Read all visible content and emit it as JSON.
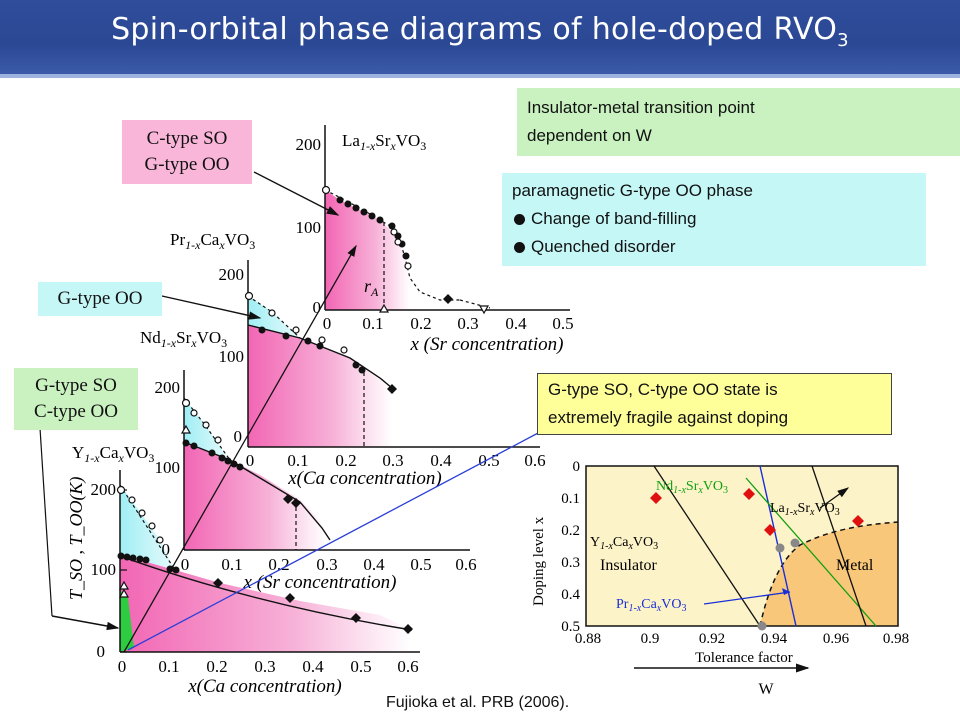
{
  "slide": {
    "title": "Spin-orbital phase diagrams of hole-doped RVO",
    "title_sub": "3",
    "citation": "Fujioka et al. PRB (2006)."
  },
  "boxes": {
    "imt": {
      "line1": "Insulator-metal transition point",
      "line2": "dependent on W"
    },
    "paramagnetic": {
      "line1": "paramagnetic G-type OO phase",
      "bullets": [
        "Change of band-filling",
        "Quenched disorder"
      ]
    },
    "fragile": {
      "line1": "G-type SO, C-type OO state is",
      "line2": "extremely fragile against doping"
    },
    "ctype_so": {
      "line1": "C-type SO",
      "line2": "G-type OO"
    },
    "gtype_oo": {
      "line1": "G-type OO"
    },
    "gtype_so": {
      "line1": "G-type SO",
      "line2": "C-type OO"
    }
  },
  "panels": {
    "la": {
      "formula_a": "La",
      "formula_sub": "1-x",
      "formula_b": "Sr",
      "formula_sub2": "x",
      "formula_c": "VO",
      "formula_sub3": "3",
      "xlabel": "x (Sr concentration)",
      "xticks": [
        "0",
        "0.1",
        "0.2",
        "0.3",
        "0.4",
        "0.5"
      ],
      "yticks": [
        "0",
        "100",
        "200"
      ],
      "annotation": "r"
    },
    "pr": {
      "formula_a": "Pr",
      "formula_sub": "1-x",
      "formula_b": "Ca",
      "formula_sub2": "x",
      "formula_c": "VO",
      "formula_sub3": "3",
      "xlabel": "x(Ca concentration)",
      "xticks": [
        "0",
        "0.1",
        "0.2",
        "0.3",
        "0.4",
        "0.5",
        "0.6"
      ],
      "yticks": [
        "0",
        "100",
        "200"
      ]
    },
    "nd": {
      "formula_a": "Nd",
      "formula_sub": "1-x",
      "formula_b": "Sr",
      "formula_sub2": "x",
      "formula_c": "VO",
      "formula_sub3": "3",
      "xlabel": "x (Sr concentration)",
      "xticks": [
        "0",
        "0.1",
        "0.2",
        "0.3",
        "0.4",
        "0.5",
        "0.6"
      ],
      "yticks": [
        "0",
        "100",
        "200"
      ]
    },
    "y": {
      "formula_a": "Y",
      "formula_sub": "1-x",
      "formula_b": "Ca",
      "formula_sub2": "x",
      "formula_c": "VO",
      "formula_sub3": "3",
      "xlabel": "x(Ca concentration)",
      "xticks": [
        "0",
        "0.1",
        "0.2",
        "0.3",
        "0.4",
        "0.5",
        "0.6"
      ],
      "yticks": [
        "0",
        "100",
        "200"
      ],
      "ylabel": "T_SO , T_OO(K)"
    }
  },
  "inset": {
    "ylabel": "Doping level x",
    "xlabel": "Tolerance factor",
    "w_label": "W",
    "xticks": [
      "0.88",
      "0.9",
      "0.92",
      "0.94",
      "0.96",
      "0.98"
    ],
    "yticks": [
      "0",
      "0.1",
      "0.2",
      "0.3",
      "0.4",
      "0.5"
    ],
    "region_insulator": "Insulator",
    "region_metal": "Metal",
    "labels": {
      "nd": "Nd",
      "la": "La",
      "y": "Y",
      "pr": "Pr"
    },
    "colors": {
      "insulator": "#fdf3c8",
      "metal": "#f9c77a",
      "nd_line": "#10a010",
      "pr_line": "#1a2fd8"
    }
  },
  "colors": {
    "title_bar": "#2f4d9a",
    "pink": "#f9b6d9",
    "cyan": "#c6f7f7",
    "green": "#c9f2c0",
    "pink_fill": "#f06aae",
    "cyan_fill": "#b5f0f5"
  }
}
